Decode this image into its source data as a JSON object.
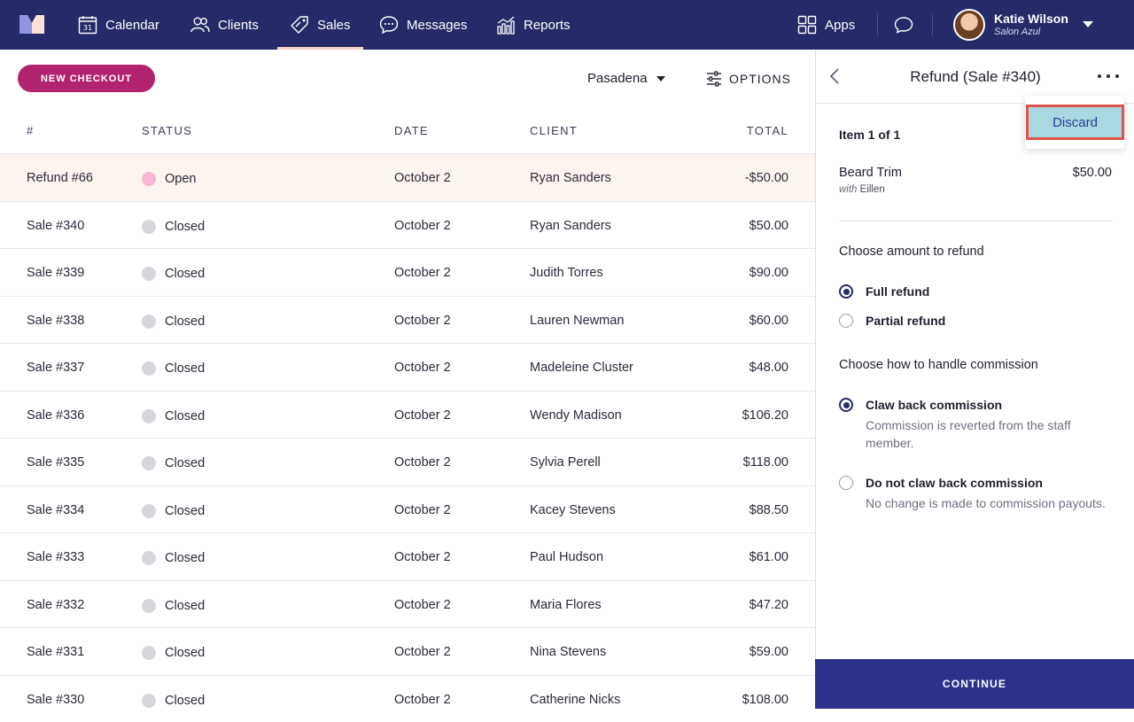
{
  "nav": {
    "items": [
      {
        "label": "Calendar",
        "icon": "calendar-icon"
      },
      {
        "label": "Clients",
        "icon": "clients-icon"
      },
      {
        "label": "Sales",
        "icon": "tag-icon"
      },
      {
        "label": "Messages",
        "icon": "chat-bubble-icon"
      },
      {
        "label": "Reports",
        "icon": "bar-chart-icon"
      }
    ],
    "active": "Sales",
    "calendar_day": "31",
    "apps_label": "Apps",
    "user": {
      "name": "Katie Wilson",
      "salon": "Salon Azul"
    }
  },
  "toolbar": {
    "new_checkout": "NEW CHECKOUT",
    "location": "Pasadena",
    "options": "OPTIONS"
  },
  "table": {
    "headers": {
      "num": "#",
      "status": "STATUS",
      "date": "DATE",
      "client": "CLIENT",
      "total": "TOTAL"
    },
    "rows": [
      {
        "num": "Refund #66",
        "status": "Open",
        "date": "October 2",
        "client": "Ryan Sanders",
        "total": "-$50.00"
      },
      {
        "num": "Sale #340",
        "status": "Closed",
        "date": "October 2",
        "client": "Ryan Sanders",
        "total": "$50.00"
      },
      {
        "num": "Sale #339",
        "status": "Closed",
        "date": "October 2",
        "client": "Judith Torres",
        "total": "$90.00"
      },
      {
        "num": "Sale #338",
        "status": "Closed",
        "date": "October 2",
        "client": "Lauren Newman",
        "total": "$60.00"
      },
      {
        "num": "Sale #337",
        "status": "Closed",
        "date": "October 2",
        "client": "Madeleine Cluster",
        "total": "$48.00"
      },
      {
        "num": "Sale #336",
        "status": "Closed",
        "date": "October 2",
        "client": "Wendy Madison",
        "total": "$106.20"
      },
      {
        "num": "Sale #335",
        "status": "Closed",
        "date": "October 2",
        "client": "Sylvia Perell",
        "total": "$118.00"
      },
      {
        "num": "Sale #334",
        "status": "Closed",
        "date": "October 2",
        "client": "Kacey Stevens",
        "total": "$88.50"
      },
      {
        "num": "Sale #333",
        "status": "Closed",
        "date": "October 2",
        "client": "Paul Hudson",
        "total": "$61.00"
      },
      {
        "num": "Sale #332",
        "status": "Closed",
        "date": "October 2",
        "client": "Maria Flores",
        "total": "$47.20"
      },
      {
        "num": "Sale #331",
        "status": "Closed",
        "date": "October 2",
        "client": "Nina Stevens",
        "total": "$59.00"
      },
      {
        "num": "Sale #330",
        "status": "Closed",
        "date": "October 2",
        "client": "Catherine Nicks",
        "total": "$108.00"
      }
    ]
  },
  "panel": {
    "title": "Refund (Sale #340)",
    "menu": {
      "discard": "Discard"
    },
    "item_count": "Item 1 of 1",
    "item": {
      "name": "Beard Trim",
      "with_prefix": "with",
      "staff": "Eillen",
      "price": "$50.00"
    },
    "amount_heading": "Choose amount to refund",
    "amount_options": [
      {
        "label": "Full refund",
        "checked": true
      },
      {
        "label": "Partial refund",
        "checked": false
      }
    ],
    "commission_heading": "Choose how to handle commission",
    "commission_options": [
      {
        "label": "Claw back commission",
        "desc": "Commission is reverted from the staff member.",
        "checked": true
      },
      {
        "label": "Do not claw back commission",
        "desc": "No change is made to commission payouts.",
        "checked": false
      }
    ],
    "continue": "CONTINUE"
  },
  "colors": {
    "nav_bg": "#262a68",
    "brand_pink": "#b2236e",
    "open_status": "#f7b6d3",
    "closed_status": "#d6d6dc",
    "continue_bg": "#2e3189",
    "discard_highlight": "#a8d9e0"
  }
}
